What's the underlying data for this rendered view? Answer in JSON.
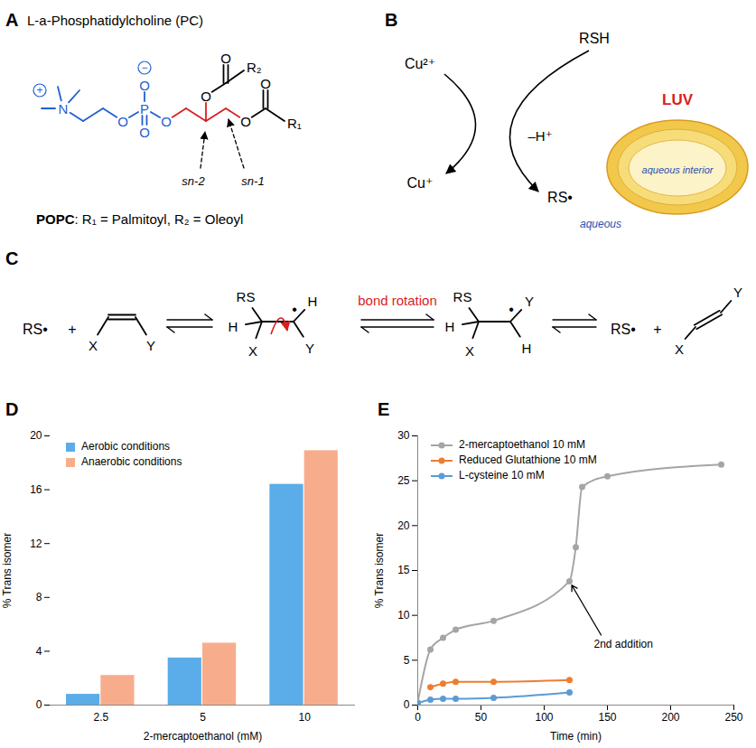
{
  "panels": {
    "A": {
      "label": "A",
      "title": "L-a-Phosphatidylcholine (PC)",
      "atoms": {
        "n": "N",
        "o": "O",
        "p": "P",
        "plus": "+",
        "minus": "−"
      },
      "r1": "R₁",
      "r2": "R₂",
      "positions": [
        "sn-2",
        "sn-1"
      ],
      "caption": {
        "name": "POPC",
        "text": ": R₁ = Palmitoyl, R₂ = Oleoyl"
      }
    },
    "B": {
      "label": "B",
      "oxidant": "Cu²⁺",
      "reduced": "Cu⁺",
      "thiol": "RSH",
      "proton": "–H⁺",
      "radical": "RS•",
      "vesicle": "LUV",
      "inside": "aqueous interior",
      "outside": "aqueous"
    },
    "C": {
      "label": "C",
      "radical": "RS•",
      "plus": "+",
      "substituents": [
        "RS",
        "H",
        "X",
        "Y"
      ],
      "dot": "•",
      "rotation": "bond rotation"
    }
  },
  "chart_data": [
    {
      "type": "bar",
      "title": "D",
      "categories": [
        2.5,
        5,
        10
      ],
      "series": [
        {
          "name": "Aerobic conditions",
          "color": "#5aade8",
          "values": [
            0.8,
            3.5,
            16.4
          ]
        },
        {
          "name": "Anaerobic conditions",
          "color": "#f7ad8c",
          "values": [
            2.2,
            4.6,
            18.9
          ]
        }
      ],
      "xlabel": "2-mercaptoethanol (mM)",
      "ylabel": "% Trans isomer",
      "ylim": [
        0,
        20
      ],
      "yticks": [
        0,
        4,
        8,
        12,
        16,
        20
      ],
      "grid": false,
      "legend": "top-left"
    },
    {
      "type": "line",
      "title": "E",
      "series": [
        {
          "name": "2-mercaptoethanol 10 mM",
          "color": "#a5a5a5",
          "x": [
            0,
            10,
            20,
            30,
            60,
            120,
            125,
            130,
            150,
            240
          ],
          "values": [
            0.3,
            6.2,
            7.5,
            8.4,
            9.4,
            13.8,
            17.6,
            24.3,
            25.5,
            26.8
          ]
        },
        {
          "name": "Reduced Glutathione 10 mM",
          "color": "#ed7d31",
          "x": [
            10,
            20,
            30,
            60,
            120
          ],
          "values": [
            2.0,
            2.4,
            2.6,
            2.6,
            2.8
          ]
        },
        {
          "name": "L-cysteine 10 mM",
          "color": "#5b9bd5",
          "x": [
            0,
            10,
            20,
            30,
            60,
            120
          ],
          "values": [
            0.2,
            0.6,
            0.7,
            0.7,
            0.8,
            1.4
          ]
        }
      ],
      "marker": "circle",
      "line_style": "solid",
      "xlabel": "Time (min)",
      "ylabel": "% Trans isomer",
      "xlim": [
        0,
        250
      ],
      "xticks": [
        0,
        50,
        100,
        150,
        200,
        250
      ],
      "ylim": [
        0,
        30
      ],
      "yticks": [
        0,
        5,
        10,
        15,
        20,
        25,
        30
      ],
      "grid": false,
      "legend": "top-left",
      "annotations": [
        {
          "text": "2nd addition",
          "x": 120,
          "y": 13.8
        }
      ]
    }
  ]
}
